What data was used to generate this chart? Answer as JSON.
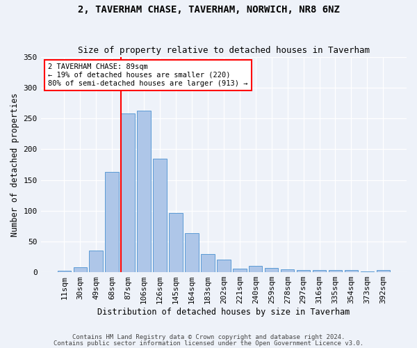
{
  "title1": "2, TAVERHAM CHASE, TAVERHAM, NORWICH, NR8 6NZ",
  "title2": "Size of property relative to detached houses in Taverham",
  "xlabel": "Distribution of detached houses by size in Taverham",
  "ylabel": "Number of detached properties",
  "categories": [
    "11sqm",
    "30sqm",
    "49sqm",
    "68sqm",
    "87sqm",
    "106sqm",
    "126sqm",
    "145sqm",
    "164sqm",
    "183sqm",
    "202sqm",
    "221sqm",
    "240sqm",
    "259sqm",
    "278sqm",
    "297sqm",
    "316sqm",
    "335sqm",
    "354sqm",
    "373sqm",
    "392sqm"
  ],
  "values": [
    2,
    8,
    35,
    163,
    258,
    263,
    185,
    96,
    63,
    29,
    20,
    6,
    10,
    7,
    5,
    4,
    3,
    3,
    3,
    1,
    4
  ],
  "bar_color": "#aec6e8",
  "bar_edge_color": "#5b9bd5",
  "vline_index": 4,
  "vline_color": "red",
  "annotation_text": "2 TAVERHAM CHASE: 89sqm\n← 19% of detached houses are smaller (220)\n80% of semi-detached houses are larger (913) →",
  "annotation_box_color": "white",
  "annotation_box_edge": "red",
  "ylim": [
    0,
    350
  ],
  "yticks": [
    0,
    50,
    100,
    150,
    200,
    250,
    300,
    350
  ],
  "footer1": "Contains HM Land Registry data © Crown copyright and database right 2024.",
  "footer2": "Contains public sector information licensed under the Open Government Licence v3.0.",
  "background_color": "#eef2f9",
  "plot_bg_color": "#eef2f9",
  "title1_fontsize": 10,
  "title2_fontsize": 9,
  "xlabel_fontsize": 8.5,
  "ylabel_fontsize": 8.5,
  "tick_fontsize": 8,
  "footer_fontsize": 6.5,
  "annotation_fontsize": 7.5
}
